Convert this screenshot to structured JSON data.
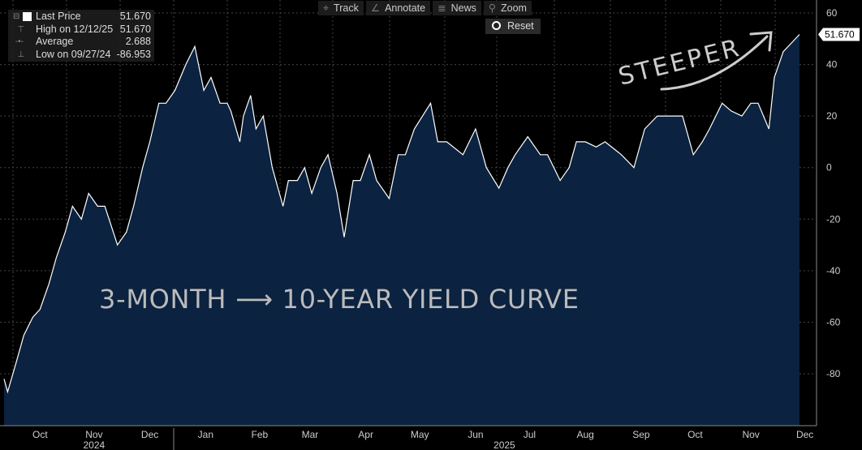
{
  "toolbar": {
    "track": "Track",
    "annotate": "Annotate",
    "news": "News",
    "zoom": "Zoom",
    "reset": "Reset",
    "icons": [
      "crosshair-icon",
      "pencil-icon",
      "news-icon",
      "magnifier-icon"
    ]
  },
  "legend": [
    {
      "label": "Last Price",
      "value": "51.670"
    },
    {
      "label": "High on 12/12/25",
      "value": "51.670"
    },
    {
      "label": "Average",
      "value": "2.688"
    },
    {
      "label": "Low on 09/27/24",
      "value": "-86.953"
    }
  ],
  "annotations": {
    "steeper": "STEEPER",
    "curve": "3-MONTH ⟶ 10-YEAR YIELD CURVE"
  },
  "chart_data": {
    "type": "area",
    "x_unit": "days since 2024-10-01",
    "x": [
      -5,
      -3,
      2,
      6,
      11,
      15,
      20,
      24,
      29,
      33,
      38,
      42,
      47,
      51,
      58,
      63,
      67,
      72,
      76,
      81,
      85,
      90,
      96,
      101,
      106,
      110,
      115,
      119,
      121,
      126,
      128,
      132,
      135,
      139,
      144,
      150,
      153,
      158,
      162,
      166,
      171,
      175,
      180,
      184,
      189,
      193,
      198,
      202,
      209,
      214,
      218,
      223,
      232,
      236,
      241,
      250,
      257,
      263,
      270,
      275,
      279,
      286,
      293,
      297,
      304,
      309,
      313,
      318,
      324,
      329,
      338,
      345,
      351,
      358,
      365,
      372,
      378,
      383,
      387,
      394,
      399,
      405,
      410,
      414,
      420,
      423,
      428,
      437
    ],
    "y": [
      -82,
      -87,
      -75,
      -65,
      -58,
      -55,
      -45,
      -35,
      -25,
      -15,
      -20,
      -10,
      -15,
      -15,
      -30,
      -25,
      -15,
      0,
      10,
      25,
      25,
      30,
      40,
      47,
      30,
      35,
      25,
      25,
      22,
      10,
      20,
      28,
      15,
      20,
      0,
      -15,
      -5,
      -5,
      0,
      -10,
      0,
      5,
      -10,
      -27,
      -5,
      -5,
      5,
      -5,
      -12,
      5,
      5,
      15,
      25,
      10,
      10,
      5,
      15,
      0,
      -8,
      0,
      5,
      12,
      5,
      5,
      -5,
      0,
      10,
      10,
      8,
      10,
      5,
      0,
      15,
      20,
      20,
      20,
      5,
      10,
      15,
      25,
      22,
      20,
      25,
      25,
      15,
      35,
      45,
      51.67
    ],
    "last_value_label": "51.670",
    "ylim": [
      -100,
      63
    ],
    "yticks": [
      60,
      40,
      20,
      0,
      -20,
      -40,
      -60,
      -80
    ],
    "xticks": [
      {
        "label": "Oct",
        "day": 15
      },
      {
        "label": "Nov",
        "day": 45
      },
      {
        "label": "Dec",
        "day": 76
      },
      {
        "label": "Jan",
        "day": 107
      },
      {
        "label": "Feb",
        "day": 137
      },
      {
        "label": "Mar",
        "day": 165
      },
      {
        "label": "Apr",
        "day": 196
      },
      {
        "label": "May",
        "day": 226
      },
      {
        "label": "Jun",
        "day": 257
      },
      {
        "label": "Jul",
        "day": 287
      },
      {
        "label": "Aug",
        "day": 318
      },
      {
        "label": "Sep",
        "day": 349
      },
      {
        "label": "Oct",
        "day": 379
      },
      {
        "label": "Nov",
        "day": 410
      },
      {
        "label": "Dec",
        "day": 440
      }
    ],
    "years": [
      {
        "label": "2024",
        "day": 45
      },
      {
        "label": "2025",
        "day": 273
      }
    ],
    "colors": {
      "fill": "#0b2240",
      "line": "#ffffff",
      "grid": "#444444"
    }
  }
}
